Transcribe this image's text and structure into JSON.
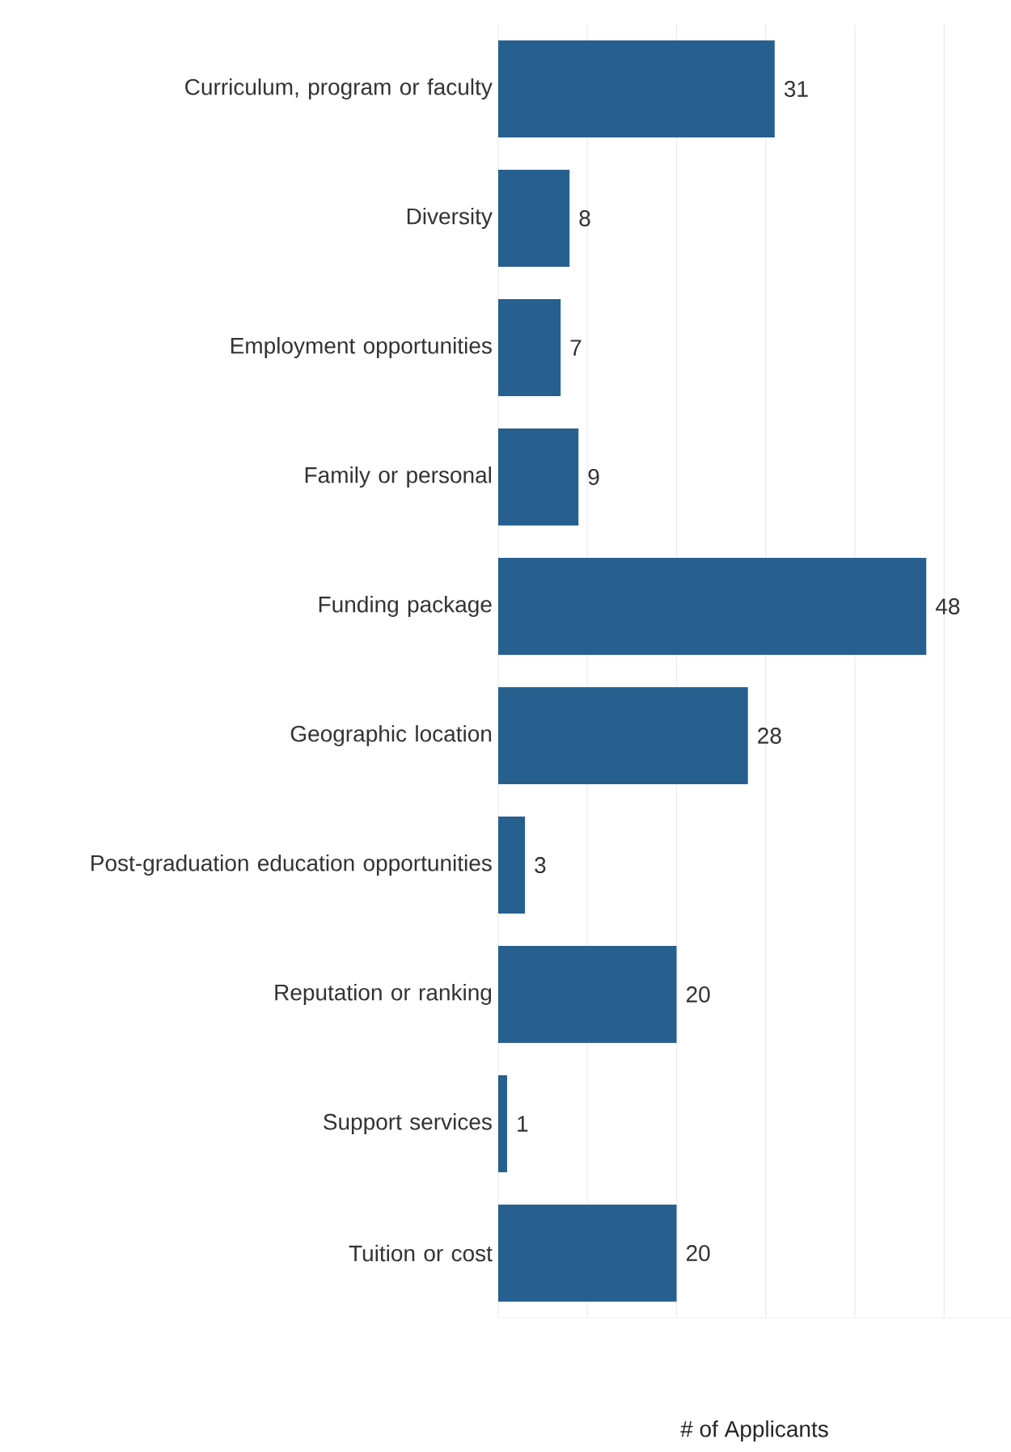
{
  "chart_data": {
    "type": "bar",
    "orientation": "horizontal",
    "categories": [
      "Curriculum, program or faculty",
      "Diversity",
      "Employment opportunities",
      "Family or personal",
      "Funding package",
      "Geographic location",
      "Post-graduation education opportunities",
      "Reputation or ranking",
      "Support services",
      "Tuition or cost"
    ],
    "values": [
      31,
      8,
      7,
      9,
      48,
      28,
      3,
      20,
      1,
      20
    ],
    "color": "#27608f",
    "xlabel": "# of Applicants",
    "xlim": [
      0,
      57.5
    ],
    "xticks": [
      {
        "value": 0,
        "label": null
      },
      {
        "value": 10,
        "label": null
      },
      {
        "value": 20,
        "label": null
      },
      {
        "value": 30,
        "label": null
      },
      {
        "value": 40,
        "label": null
      },
      {
        "value": 50,
        "label": null
      }
    ],
    "grid": "x",
    "tick_labels": "y",
    "data_labels": true
  }
}
